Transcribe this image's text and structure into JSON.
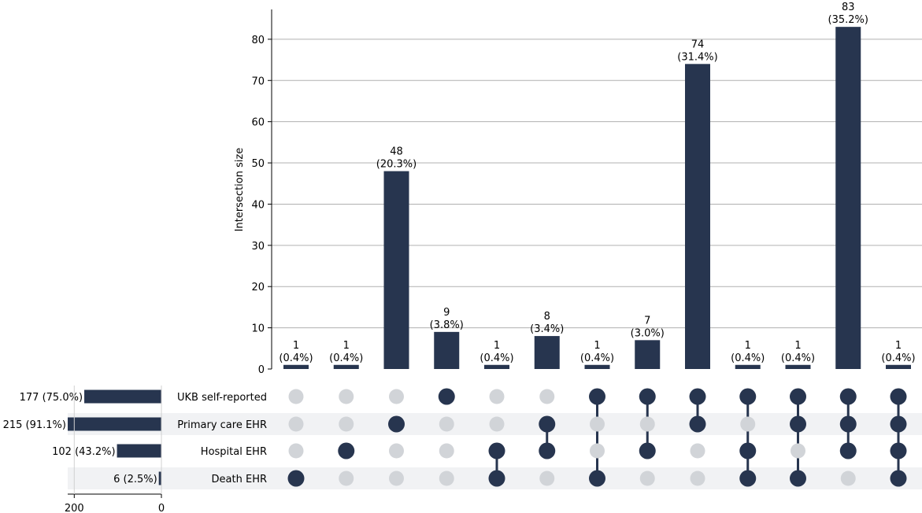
{
  "chart_data": {
    "type": "upset",
    "ylabel": "Intersection size",
    "ylim": [
      0,
      87
    ],
    "yticks": [
      0,
      10,
      20,
      30,
      40,
      50,
      60,
      70,
      80
    ],
    "bar_color": "#27354f",
    "inactive_dot_color": "#d1d4d8",
    "stripe_color": "#f1f2f4",
    "sets": [
      {
        "name": "UKB self-reported",
        "size": 177,
        "label": "177 (75.0%)"
      },
      {
        "name": "Primary care EHR",
        "size": 215,
        "label": "215 (91.1%)"
      },
      {
        "name": "Hospital EHR",
        "size": 102,
        "label": "102 (43.2%)"
      },
      {
        "name": "Death EHR",
        "size": 6,
        "label": "6 (2.5%)"
      }
    ],
    "set_size_axis": {
      "ticks": [
        200,
        0
      ],
      "max": 215
    },
    "intersections": [
      {
        "members": [
          3
        ],
        "value": 1,
        "pct": "(0.4%)"
      },
      {
        "members": [
          2
        ],
        "value": 1,
        "pct": "(0.4%)"
      },
      {
        "members": [
          1
        ],
        "value": 48,
        "pct": "(20.3%)"
      },
      {
        "members": [
          0
        ],
        "value": 9,
        "pct": "(3.8%)"
      },
      {
        "members": [
          2,
          3
        ],
        "value": 1,
        "pct": "(0.4%)"
      },
      {
        "members": [
          1,
          2
        ],
        "value": 8,
        "pct": "(3.4%)"
      },
      {
        "members": [
          0,
          3
        ],
        "value": 1,
        "pct": "(0.4%)"
      },
      {
        "members": [
          0,
          2
        ],
        "value": 7,
        "pct": "(3.0%)"
      },
      {
        "members": [
          0,
          1
        ],
        "value": 74,
        "pct": "(31.4%)"
      },
      {
        "members": [
          0,
          2,
          3
        ],
        "value": 1,
        "pct": "(0.4%)"
      },
      {
        "members": [
          0,
          1,
          3
        ],
        "value": 1,
        "pct": "(0.4%)"
      },
      {
        "members": [
          0,
          1,
          2
        ],
        "value": 83,
        "pct": "(35.2%)"
      },
      {
        "members": [
          0,
          1,
          2,
          3
        ],
        "value": 1,
        "pct": "(0.4%)"
      }
    ]
  }
}
